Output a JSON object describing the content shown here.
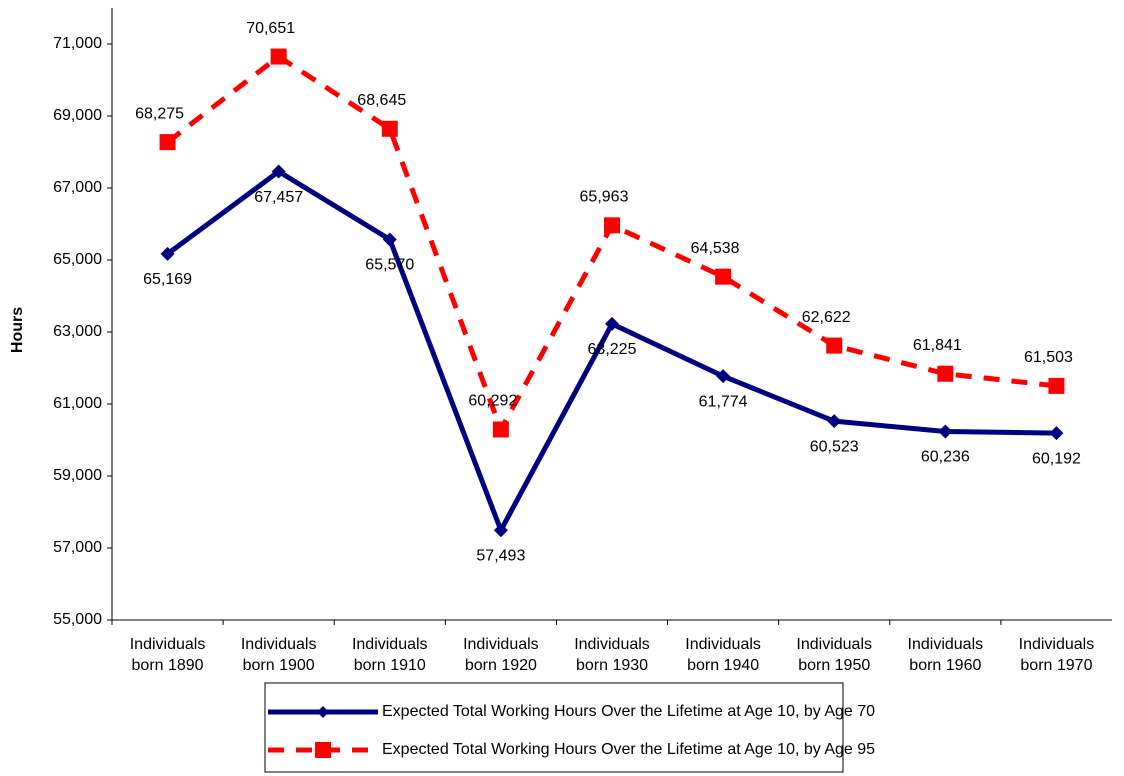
{
  "chart_data": {
    "type": "line",
    "y_label": "Hours",
    "categories": [
      "Individuals born 1890",
      "Individuals born 1900",
      "Individuals born 1910",
      "Individuals born 1920",
      "Individuals born 1930",
      "Individuals born 1940",
      "Individuals born 1950",
      "Individuals born 1960",
      "Individuals born 1970"
    ],
    "series": [
      {
        "name": "Expected Total Working Hours Over the Lifetime at Age 10, by Age 70",
        "color": "#000080",
        "marker": "diamond",
        "dashed": false,
        "values": [
          65169,
          67457,
          65570,
          57493,
          63225,
          61774,
          60523,
          60236,
          60192
        ],
        "value_labels": [
          "65,169",
          "67,457",
          "65,570",
          "57,493",
          "63,225",
          "61,774",
          "60,523",
          "60,236",
          "60,192"
        ]
      },
      {
        "name": "Expected Total Working Hours Over the Lifetime at Age 10, by Age 95",
        "color": "#ff0000",
        "marker": "square",
        "dashed": true,
        "values": [
          68275,
          70651,
          68645,
          60292,
          65963,
          64538,
          62622,
          61841,
          61503
        ],
        "value_labels": [
          "68,275",
          "70,651",
          "68,645",
          "60,292",
          "65,963",
          "64,538",
          "62,622",
          "61,841",
          "61,503"
        ]
      }
    ],
    "ylim": [
      55000,
      72000
    ],
    "yticks": [
      {
        "value": 55000,
        "label": "55,000"
      },
      {
        "value": 57000,
        "label": "57,000"
      },
      {
        "value": 59000,
        "label": "59,000"
      },
      {
        "value": 61000,
        "label": "61,000"
      },
      {
        "value": 63000,
        "label": "63,000"
      },
      {
        "value": 65000,
        "label": "65,000"
      },
      {
        "value": 67000,
        "label": "67,000"
      },
      {
        "value": 69000,
        "label": "69,000"
      },
      {
        "value": 71000,
        "label": "71,000"
      }
    ]
  }
}
